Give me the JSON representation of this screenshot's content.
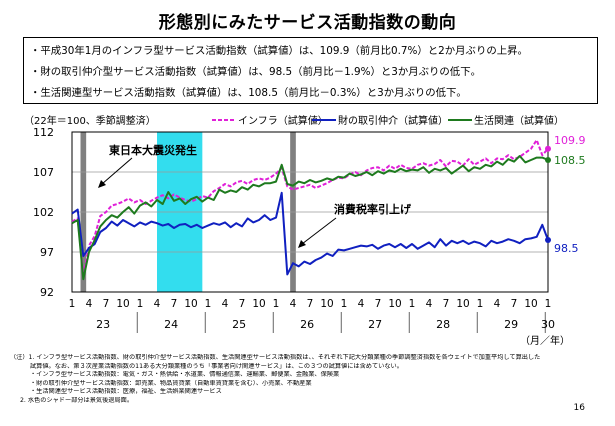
{
  "title": "形態別にみたサービス活動指数の動向",
  "summary": [
    "・平成30年1月のインフラ型サービス活動指数（試算値）は、109.9（前月比0.7%）と2か月ぶりの上昇。",
    "・財の取引仲介型サービス活動指数（試算値）は、98.5（前月比－1.9%）と3か月ぶりの低下。",
    "・生活関連型サービス活動指数（試算値）は、108.5（前月比－0.3%）と3か月ぶりの低下。"
  ],
  "chart_data": {
    "type": "line",
    "base_note": "（22年＝100、季節調整済）",
    "x_label_months": [
      "1",
      "4",
      "7",
      "10"
    ],
    "x_year_labels": [
      "23",
      "24",
      "25",
      "26",
      "27",
      "28",
      "29",
      "30"
    ],
    "x_unit": "（月／年）",
    "start": "2011-01",
    "end": "2018-01",
    "ylim": [
      92,
      112
    ],
    "yticks": [
      92,
      97,
      102,
      107,
      112
    ],
    "shaded_periods": [
      {
        "from": "2011-03",
        "to": "2011-03",
        "color": "#808080"
      },
      {
        "from": "2012-04",
        "to": "2012-11",
        "color": "#33ddee"
      },
      {
        "from": "2014-04",
        "to": "2014-04",
        "color": "#808080"
      }
    ],
    "annotations": [
      "東日本大震災発生",
      "消費税率引上げ"
    ],
    "series": [
      {
        "name": "インフラ（試算値）",
        "color": "#e020d8",
        "style": "dashed",
        "end_label": "109.9",
        "values": [
          100.8,
          101.2,
          94.0,
          97.8,
          99.0,
          101.5,
          102.0,
          102.8,
          103.0,
          103.3,
          103.7,
          103.2,
          103.5,
          103.0,
          103.4,
          103.8,
          104.1,
          103.7,
          104.2,
          103.8,
          103.5,
          103.3,
          103.6,
          104.0,
          103.8,
          104.6,
          105.0,
          105.5,
          105.2,
          105.7,
          105.9,
          105.5,
          106.0,
          106.2,
          106.0,
          106.3,
          106.8,
          107.5,
          105.2,
          104.8,
          105.0,
          105.2,
          105.4,
          105.0,
          105.3,
          105.6,
          106.0,
          106.3,
          106.2,
          106.7,
          107.0,
          106.6,
          107.2,
          107.5,
          107.6,
          107.2,
          107.8,
          107.4,
          107.9,
          107.5,
          107.4,
          107.9,
          108.1,
          107.8,
          108.0,
          108.5,
          107.7,
          108.4,
          108.3,
          107.8,
          108.6,
          107.9,
          108.3,
          108.7,
          108.1,
          108.7,
          108.6,
          109.1,
          108.6,
          108.9,
          109.4,
          109.9,
          111.0,
          109.1,
          109.9
        ],
        "last_value": 109.9
      },
      {
        "name": "財の取引仲介（試算値）",
        "color": "#1020c0",
        "style": "solid",
        "end_label": "98.5",
        "values": [
          101.8,
          102.3,
          96.5,
          97.5,
          98.0,
          99.5,
          100.0,
          100.8,
          100.3,
          101.0,
          100.6,
          100.2,
          100.7,
          100.4,
          100.8,
          100.6,
          100.3,
          100.5,
          100.0,
          100.4,
          100.5,
          100.1,
          100.4,
          100.0,
          100.3,
          100.6,
          100.4,
          100.7,
          100.1,
          100.6,
          100.2,
          101.2,
          100.7,
          101.0,
          101.6,
          101.0,
          101.3,
          104.4,
          94.2,
          95.6,
          95.2,
          95.8,
          95.5,
          96.0,
          96.3,
          96.8,
          96.5,
          97.3,
          97.2,
          97.4,
          97.6,
          97.8,
          97.7,
          97.9,
          97.4,
          97.8,
          98.0,
          97.6,
          98.0,
          97.5,
          98.0,
          97.4,
          97.8,
          98.2,
          97.6,
          98.6,
          97.8,
          98.4,
          98.1,
          98.4,
          98.0,
          98.3,
          98.1,
          97.7,
          98.4,
          98.1,
          98.3,
          98.6,
          98.4,
          98.1,
          98.6,
          98.7,
          98.9,
          100.4,
          98.5
        ],
        "last_value": 98.5
      },
      {
        "name": "生活関連（試算値）",
        "color": "#1e7a1e",
        "style": "solid",
        "end_label": "108.5",
        "values": [
          100.6,
          101.0,
          93.6,
          97.0,
          98.5,
          100.2,
          101.0,
          101.6,
          101.3,
          102.0,
          102.6,
          101.8,
          102.8,
          103.2,
          102.7,
          103.5,
          103.0,
          104.5,
          103.4,
          103.7,
          103.0,
          103.6,
          103.9,
          103.3,
          103.8,
          103.5,
          104.8,
          104.4,
          104.7,
          104.5,
          105.1,
          104.8,
          105.4,
          105.2,
          105.6,
          105.6,
          105.8,
          107.9,
          105.5,
          105.3,
          105.8,
          105.6,
          106.0,
          105.7,
          105.9,
          106.2,
          106.0,
          106.4,
          106.3,
          106.8,
          106.5,
          106.7,
          107.0,
          106.6,
          107.1,
          106.8,
          107.2,
          107.0,
          107.4,
          107.1,
          107.3,
          107.2,
          107.6,
          106.9,
          107.4,
          107.2,
          107.5,
          106.8,
          107.3,
          107.8,
          107.1,
          107.6,
          107.4,
          107.9,
          107.7,
          108.3,
          107.9,
          108.6,
          108.3,
          109.0,
          108.2,
          108.5,
          108.8,
          108.8,
          108.5
        ],
        "last_value": 108.5
      }
    ]
  },
  "footnotes": [
    "（注）1. インフラ型サービス活動指数、財の取引仲介型サービス活動指数、生活関連型サービス活動指数は、、それぞれ下記大分類業種の季節調整済指数を各ウェイトで加重平均して算出した",
    "試算値。なお、第３次産業活動指数の11ある大分類業種のうち「事業者向け関連サービス」は、この３つの試算値には含めていない。",
    "・インフラ型サービス活動指数：電気・ガス・熱供給・水道業、情報通信業、運輸業、郵便業、金融業、保険業",
    "・財の取引仲介型サービス活動指数：卸売業、物品賃貸業（自動車賃貸業を含む）、小売業、不動産業",
    "・生活関連型サービス活動指数：医療，福祉、生活娯楽関連サービス",
    "2. 水色のシャドー部分は景気後退局面。"
  ],
  "page_number": "16"
}
